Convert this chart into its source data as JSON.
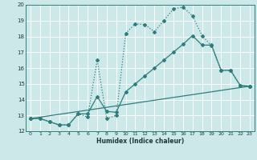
{
  "bg_color": "#cde8e8",
  "grid_color": "#b8d8d8",
  "line_color": "#2e7d7d",
  "xlabel": "Humidex (Indice chaleur)",
  "xlim": [
    -0.5,
    23.5
  ],
  "ylim": [
    12,
    20
  ],
  "xticks": [
    0,
    1,
    2,
    3,
    4,
    5,
    6,
    7,
    8,
    9,
    10,
    11,
    12,
    13,
    14,
    15,
    16,
    17,
    18,
    19,
    20,
    21,
    22,
    23
  ],
  "yticks": [
    12,
    13,
    14,
    15,
    16,
    17,
    18,
    19,
    20
  ],
  "series": [
    {
      "x": [
        0,
        1,
        2,
        3,
        4,
        5,
        6,
        7,
        8,
        9,
        10,
        11,
        12,
        13,
        14,
        15,
        16,
        17,
        18,
        19,
        20,
        21,
        22,
        23
      ],
      "y": [
        12.8,
        12.8,
        12.6,
        12.4,
        12.4,
        13.1,
        12.9,
        16.5,
        12.8,
        13.0,
        18.2,
        18.8,
        18.75,
        18.3,
        19.0,
        19.75,
        19.85,
        19.3,
        18.05,
        17.4,
        15.85,
        15.85,
        14.9,
        14.85
      ],
      "style": "dotted",
      "marker": "D",
      "markersize": 2.0,
      "linewidth": 0.9
    },
    {
      "x": [
        0,
        1,
        2,
        3,
        4,
        5,
        6,
        7,
        8,
        9,
        10,
        11,
        12,
        13,
        14,
        15,
        16,
        17,
        18,
        19,
        20,
        21,
        22,
        23
      ],
      "y": [
        12.8,
        12.8,
        12.6,
        12.4,
        12.4,
        13.1,
        13.1,
        14.2,
        13.25,
        13.2,
        14.5,
        15.0,
        15.5,
        16.0,
        16.5,
        17.0,
        17.5,
        18.05,
        17.45,
        17.45,
        15.85,
        15.85,
        14.9,
        14.85
      ],
      "style": "solid",
      "marker": "D",
      "markersize": 2.0,
      "linewidth": 0.9
    },
    {
      "x": [
        0,
        23
      ],
      "y": [
        12.8,
        14.85
      ],
      "style": "solid",
      "marker": "D",
      "markersize": 2.0,
      "linewidth": 0.9
    }
  ]
}
